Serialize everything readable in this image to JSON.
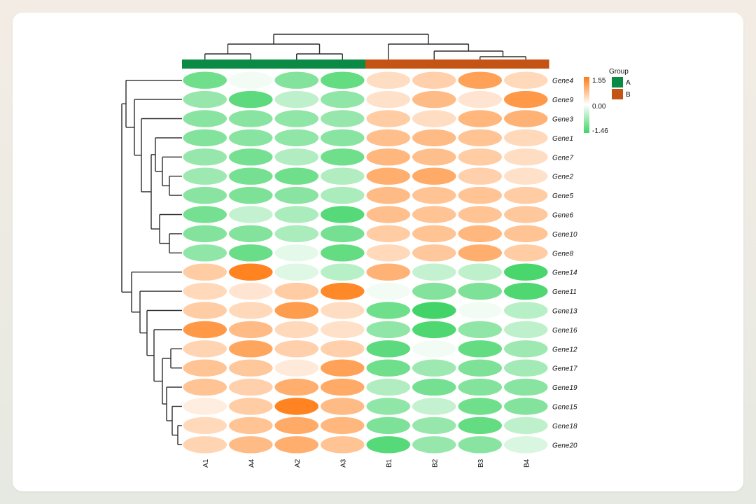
{
  "chart_data": {
    "type": "heatmap",
    "cell_shape": "ellipse",
    "columns": [
      "A1",
      "A4",
      "A2",
      "A3",
      "B1",
      "B2",
      "B3",
      "B4"
    ],
    "rows": [
      "Gene4",
      "Gene9",
      "Gene3",
      "Gene1",
      "Gene7",
      "Gene2",
      "Gene5",
      "Gene6",
      "Gene10",
      "Gene8",
      "Gene14",
      "Gene11",
      "Gene13",
      "Gene16",
      "Gene12",
      "Gene17",
      "Gene19",
      "Gene15",
      "Gene18",
      "Gene20"
    ],
    "values": [
      [
        -1.1,
        -0.1,
        -0.95,
        -1.2,
        0.4,
        0.55,
        1.1,
        0.45
      ],
      [
        -0.8,
        -1.25,
        -0.5,
        -0.85,
        0.35,
        0.8,
        0.3,
        1.2
      ],
      [
        -0.9,
        -0.9,
        -0.85,
        -0.8,
        0.6,
        0.4,
        0.85,
        0.9
      ],
      [
        -0.95,
        -0.9,
        -0.85,
        -0.9,
        0.75,
        0.8,
        0.7,
        0.45
      ],
      [
        -0.8,
        -1.05,
        -0.6,
        -1.1,
        0.85,
        0.75,
        0.6,
        0.4
      ],
      [
        -0.75,
        -1.05,
        -1.1,
        -0.6,
        0.95,
        1.0,
        0.55,
        0.35
      ],
      [
        -0.9,
        -1.0,
        -0.9,
        -0.65,
        0.8,
        0.7,
        0.7,
        0.6
      ],
      [
        -1.05,
        -0.45,
        -0.65,
        -1.3,
        0.75,
        0.7,
        0.7,
        0.65
      ],
      [
        -0.95,
        -0.95,
        -0.65,
        -1.05,
        0.6,
        0.7,
        0.85,
        0.7
      ],
      [
        -0.85,
        -1.15,
        -0.2,
        -1.2,
        0.45,
        0.65,
        0.95,
        0.6
      ],
      [
        0.6,
        1.45,
        -0.25,
        -0.55,
        0.9,
        -0.45,
        -0.5,
        -1.4
      ],
      [
        0.45,
        0.3,
        0.6,
        1.4,
        -0.1,
        -0.95,
        -1.0,
        -1.35
      ],
      [
        0.6,
        0.45,
        1.15,
        0.4,
        -1.1,
        -1.45,
        -0.1,
        -0.55
      ],
      [
        1.2,
        0.8,
        0.45,
        0.35,
        -0.85,
        -1.35,
        -0.85,
        -0.5
      ],
      [
        0.5,
        1.05,
        0.55,
        0.55,
        -1.25,
        -0.1,
        -1.2,
        -0.75
      ],
      [
        0.7,
        0.65,
        0.25,
        1.1,
        -1.1,
        -0.75,
        -1.0,
        -0.7
      ],
      [
        0.7,
        0.55,
        0.95,
        1.0,
        -0.6,
        -1.05,
        -0.95,
        -0.9
      ],
      [
        0.2,
        0.6,
        1.45,
        0.8,
        -0.85,
        -0.45,
        -1.1,
        -0.95
      ],
      [
        0.45,
        0.7,
        1.0,
        0.85,
        -1.0,
        -0.8,
        -1.2,
        -0.5
      ],
      [
        0.5,
        0.8,
        0.95,
        0.7,
        -1.3,
        -0.8,
        -0.9,
        -0.3
      ]
    ],
    "column_groups": [
      "A",
      "A",
      "A",
      "A",
      "B",
      "B",
      "B",
      "B"
    ],
    "color_scale": {
      "min": -1.46,
      "mid": 0.0,
      "max": 1.55,
      "low_color": "#41d467",
      "mid_color": "#ffffff",
      "high_color": "#ff7b12",
      "ticks": [
        "1.55",
        "0.00",
        "-1.46"
      ]
    },
    "group_legend": {
      "title": "Group",
      "items": [
        {
          "label": "A",
          "color": "#0b8a45"
        },
        {
          "label": "B",
          "color": "#c45413"
        }
      ]
    },
    "row_dendrogram_order": [
      "Gene4",
      "Gene9",
      "Gene3",
      "Gene1",
      "Gene7",
      "Gene2",
      "Gene5",
      "Gene6",
      "Gene10",
      "Gene8",
      "Gene14",
      "Gene11",
      "Gene13",
      "Gene16",
      "Gene12",
      "Gene17",
      "Gene19",
      "Gene15",
      "Gene18",
      "Gene20"
    ],
    "column_dendrogram_order": [
      "A1",
      "A4",
      "A2",
      "A3",
      "B1",
      "B2",
      "B3",
      "B4"
    ],
    "legend_position": "right"
  },
  "colors": {
    "dendrogram": "#2b2b2b",
    "card_background": "#ffffff"
  }
}
